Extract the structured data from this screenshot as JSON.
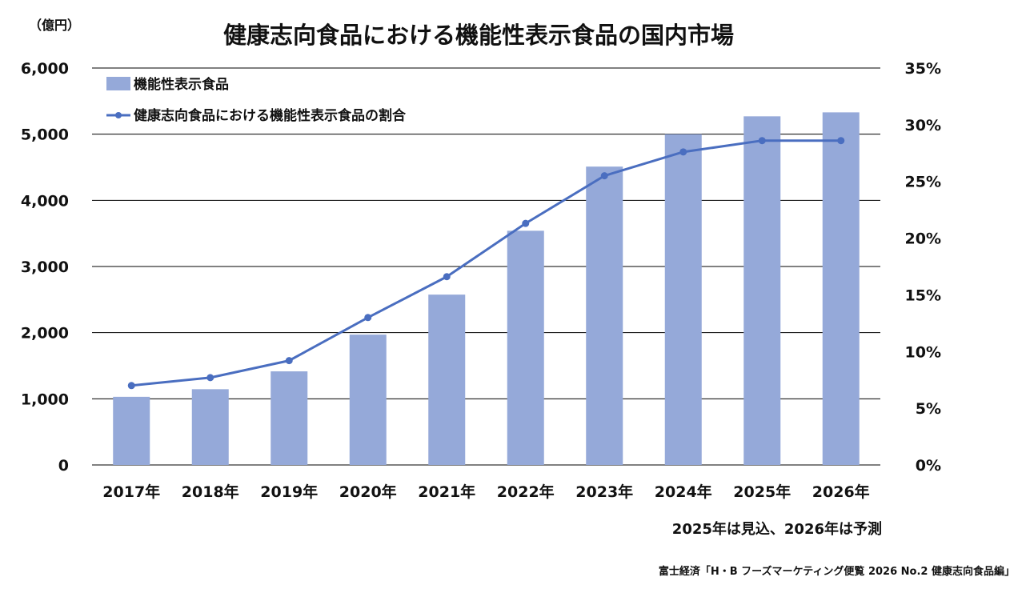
{
  "chart_data": {
    "type": "bar+line",
    "title": "健康志向食品における機能性表示食品の国内市場",
    "left_unit_label": "（億円）",
    "categories": [
      "2017年",
      "2018年",
      "2019年",
      "2020年",
      "2021年",
      "2022年",
      "2023年",
      "2024年",
      "2025年",
      "2026年"
    ],
    "series": [
      {
        "name": "機能性表示食品",
        "type": "bar",
        "axis": "left",
        "color": "#95a9d9",
        "values": [
          1030,
          1145,
          1415,
          1970,
          2575,
          3540,
          4510,
          5000,
          5270,
          5330
        ]
      },
      {
        "name": "健康志向食品における機能性表示食品の割合",
        "type": "line",
        "axis": "right",
        "color": "#4a6ec0",
        "values": [
          7.0,
          7.7,
          9.2,
          13.0,
          16.6,
          21.3,
          25.5,
          27.6,
          28.6,
          28.6
        ]
      }
    ],
    "left_axis": {
      "min": 0,
      "max": 6000,
      "ticks": [
        0,
        1000,
        2000,
        3000,
        4000,
        5000,
        6000
      ],
      "tick_labels": [
        "0",
        "1,000",
        "2,000",
        "3,000",
        "4,000",
        "5,000",
        "6,000"
      ]
    },
    "right_axis": {
      "min": 0,
      "max": 35,
      "ticks": [
        0,
        5,
        10,
        15,
        20,
        25,
        30,
        35
      ],
      "tick_labels": [
        "0%",
        "5%",
        "10%",
        "15%",
        "20%",
        "25%",
        "30%",
        "35%"
      ]
    },
    "grid": true,
    "legend_position": "top-left",
    "note": "2025年は見込、2026年は予測",
    "source": "富士経済「H・B フーズマーケティング便覧 2026 No.2 健康志向食品編」"
  }
}
